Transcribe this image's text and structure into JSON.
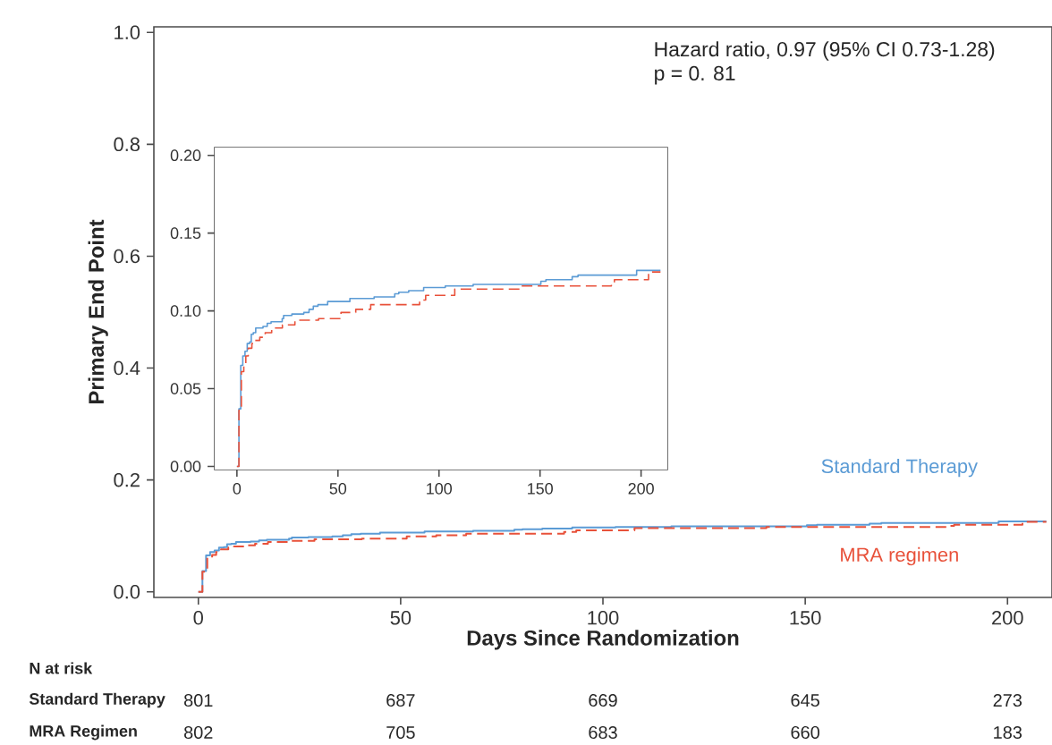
{
  "chart_data": [
    {
      "type": "step",
      "xlabel": "Days Since Randomization",
      "ylabel": "Primary End Point",
      "xlim": [
        -11,
        211
      ],
      "ylim": [
        -0.01,
        1.01
      ],
      "xticks": [
        0,
        50,
        100,
        150,
        200
      ],
      "yticks": [
        {
          "value": 0,
          "label": "0.0"
        },
        0.2,
        0.4,
        0.6,
        0.8,
        {
          "value": 1,
          "label": "1.0"
        }
      ],
      "grid": false,
      "series": [
        {
          "name": "Standard Therapy",
          "color": "#5b9bd5",
          "line_style": "solid",
          "x": [
            0,
            0.4,
            1.0,
            1.9,
            2.9,
            4.0,
            5.1,
            6.3,
            7.1,
            8.1,
            9.3,
            12.9,
            15.0,
            16.9,
            22.4,
            23.1,
            27.2,
            33.1,
            35.7,
            37.8,
            40.1,
            44.9,
            55.9,
            67.9,
            78.1,
            80.1,
            85.0,
            92.4,
            103.1,
            116.9,
            150.4,
            152.9,
            165.9,
            168.8,
            197.8,
            209.6
          ],
          "values": [
            0,
            0,
            0.037,
            0.065,
            0.071,
            0.074,
            0.079,
            0.08,
            0.085,
            0.086,
            0.089,
            0.09,
            0.092,
            0.093,
            0.095,
            0.097,
            0.098,
            0.099,
            0.101,
            0.103,
            0.104,
            0.106,
            0.108,
            0.109,
            0.111,
            0.112,
            0.113,
            0.115,
            0.116,
            0.117,
            0.119,
            0.12,
            0.122,
            0.123,
            0.126,
            0.126
          ]
        },
        {
          "name": "MRA regimen",
          "color": "#e8513a",
          "line_style": "dashed",
          "x": [
            0,
            0.4,
            1.0,
            2.2,
            3.4,
            4.4,
            5.6,
            7.4,
            8.8,
            11.3,
            14.0,
            17.2,
            22.5,
            28.7,
            40.4,
            51.5,
            58.8,
            66.2,
            90.4,
            93.4,
            107.8,
            140.4,
            185.3,
            186.8,
            203.7,
            209.6
          ],
          "values": [
            0,
            0,
            0.036,
            0.061,
            0.066,
            0.071,
            0.076,
            0.079,
            0.081,
            0.083,
            0.086,
            0.089,
            0.091,
            0.094,
            0.095,
            0.099,
            0.101,
            0.104,
            0.107,
            0.11,
            0.114,
            0.116,
            0.118,
            0.12,
            0.125,
            0.125
          ]
        }
      ],
      "annotations": [
        "Hazard ratio, 0.97 (95% CI 0.73-1.28)",
        "p = 0. 81",
        "N at risk",
        "Standard Therapy",
        "MRA Regimen",
        "801",
        "687",
        "669",
        "645",
        "273",
        "802",
        "705",
        "683",
        "660",
        "183"
      ]
    },
    {
      "type": "step",
      "xlim": [
        -11,
        213
      ],
      "ylim": [
        -0.002,
        0.205
      ],
      "xticks": [
        0,
        50,
        100,
        150,
        200
      ],
      "yticks": [
        {
          "value": 0,
          "label": "0.00"
        },
        0.05,
        {
          "value": 0.1,
          "label": "0.10"
        },
        0.15,
        {
          "value": 0.2,
          "label": "0.20"
        }
      ],
      "grid": false,
      "series": [
        {
          "color": "#5b9bd5",
          "line_style": "solid",
          "x": [
            0,
            0.4,
            1.0,
            1.9,
            2.9,
            4.0,
            5.1,
            6.3,
            7.1,
            8.1,
            9.3,
            12.9,
            15.0,
            16.9,
            22.4,
            23.1,
            27.2,
            33.1,
            35.7,
            37.8,
            40.1,
            44.9,
            55.9,
            67.9,
            78.1,
            80.1,
            85.0,
            92.4,
            103.1,
            116.9,
            150.4,
            152.9,
            165.9,
            168.8,
            197.8,
            209.6
          ],
          "values": [
            0,
            0,
            0.037,
            0.065,
            0.071,
            0.074,
            0.079,
            0.08,
            0.085,
            0.086,
            0.089,
            0.09,
            0.092,
            0.093,
            0.095,
            0.097,
            0.098,
            0.099,
            0.101,
            0.103,
            0.104,
            0.106,
            0.108,
            0.109,
            0.111,
            0.112,
            0.113,
            0.115,
            0.116,
            0.117,
            0.119,
            0.12,
            0.122,
            0.123,
            0.126,
            0.126
          ]
        },
        {
          "color": "#e8513a",
          "line_style": "dashed",
          "x": [
            0,
            0.4,
            1.0,
            2.2,
            3.4,
            4.4,
            5.6,
            7.4,
            8.8,
            11.3,
            14.0,
            17.2,
            22.5,
            28.7,
            40.4,
            51.5,
            58.8,
            66.2,
            90.4,
            93.4,
            107.8,
            140.4,
            185.3,
            186.8,
            203.7,
            209.6
          ],
          "values": [
            0,
            0,
            0.036,
            0.061,
            0.066,
            0.071,
            0.076,
            0.079,
            0.081,
            0.083,
            0.086,
            0.089,
            0.091,
            0.094,
            0.095,
            0.099,
            0.101,
            0.104,
            0.107,
            0.11,
            0.114,
            0.116,
            0.118,
            0.12,
            0.125,
            0.125
          ]
        }
      ]
    }
  ]
}
